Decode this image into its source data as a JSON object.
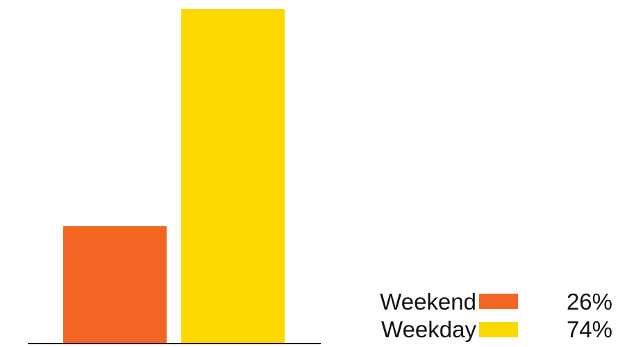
{
  "chart_data": {
    "type": "bar",
    "categories": [
      "Weekend",
      "Weekday"
    ],
    "values": [
      26,
      74
    ],
    "value_labels": [
      "26%",
      "74%"
    ],
    "colors": [
      "#f26522",
      "#fcd900"
    ],
    "ylim": [
      0,
      74
    ],
    "title": "",
    "xlabel": "",
    "ylabel": "",
    "grid": false,
    "legend": {
      "position": "bottom-right",
      "entries": [
        {
          "label": "Weekend",
          "color": "#f26522",
          "value": "26%"
        },
        {
          "label": "Weekday",
          "color": "#fcd900",
          "value": "74%"
        }
      ]
    }
  }
}
